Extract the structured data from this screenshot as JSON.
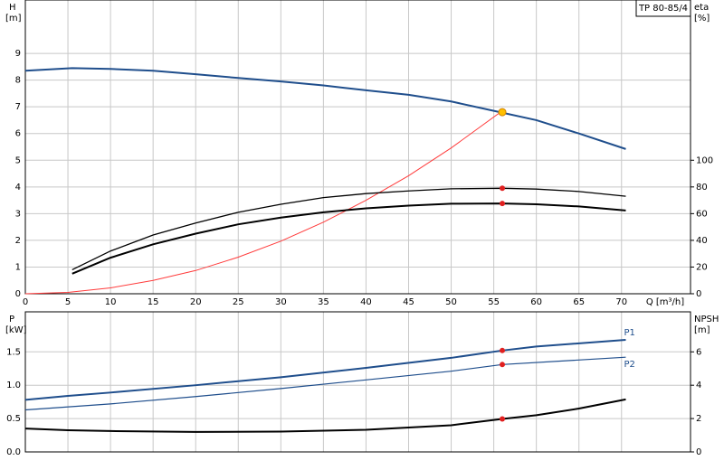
{
  "chart_data": [
    {
      "type": "line",
      "title": "TP 80-85/4",
      "xlabel": "Q [m³/h]",
      "ylabel": "H",
      "yunit": "[m]",
      "y2label": "eta",
      "y2unit": "[%]",
      "xlim": [
        0,
        78.1
      ],
      "xticks": [
        0,
        5,
        10,
        15,
        20,
        25,
        30,
        35,
        40,
        45,
        50,
        55,
        60,
        65,
        70
      ],
      "ylim": [
        0,
        11
      ],
      "yticks": [
        0,
        1,
        2,
        3,
        4,
        5,
        6,
        7,
        8,
        9
      ],
      "y2lim": [
        0,
        220
      ],
      "y2ticks": [
        0,
        20,
        40,
        60,
        80,
        100
      ],
      "grid": true,
      "series": [
        {
          "color": "#1f4e8c",
          "width": 2,
          "x": [
            0,
            5.5,
            10,
            15,
            20,
            25,
            30,
            35,
            40,
            45,
            50,
            55,
            60,
            65,
            70.5
          ],
          "values": [
            8.35,
            8.45,
            8.42,
            8.35,
            8.22,
            8.08,
            7.95,
            7.8,
            7.62,
            7.45,
            7.2,
            6.85,
            6.5,
            6.0,
            5.42
          ]
        },
        {
          "color": "#ff3b3b",
          "width": 1,
          "x": [
            0,
            5,
            10,
            15,
            20,
            25,
            30,
            35,
            40,
            45,
            50,
            56
          ],
          "values": [
            0,
            0.05,
            0.22,
            0.5,
            0.87,
            1.37,
            1.97,
            2.68,
            3.5,
            4.42,
            5.46,
            6.85
          ]
        },
        {
          "color": "#000000",
          "width": 1.3,
          "axis": "y2",
          "x": [
            5.5,
            10,
            15,
            20,
            25,
            30,
            35,
            40,
            45,
            50,
            56,
            60,
            65,
            70.5
          ],
          "values": [
            18,
            32,
            44,
            53,
            61,
            67,
            72,
            75,
            77,
            78.6,
            79,
            78.4,
            76.6,
            73
          ]
        },
        {
          "color": "#000000",
          "width": 2,
          "axis": "y2",
          "x": [
            5.5,
            10,
            15,
            20,
            25,
            30,
            35,
            40,
            45,
            50,
            56,
            60,
            65,
            70.5
          ],
          "values": [
            15,
            27,
            37,
            45,
            52,
            57,
            61,
            64,
            66,
            67.4,
            67.6,
            67,
            65.4,
            62.4
          ]
        }
      ],
      "markers": [
        {
          "x": 56,
          "y": 6.8,
          "color": "#ffc000"
        },
        {
          "x": 56,
          "y": 79,
          "axis": "y2",
          "color": "#e02020"
        },
        {
          "x": 56,
          "y": 67.6,
          "axis": "y2",
          "color": "#e02020"
        }
      ]
    },
    {
      "type": "line",
      "ylabel": "P",
      "yunit": "[kW]",
      "y2label": "NPSH",
      "y2unit": "[m]",
      "xlim": [
        0,
        78.1
      ],
      "xticks": [
        0,
        5,
        10,
        15,
        20,
        25,
        30,
        35,
        40,
        45,
        50,
        55,
        60,
        65,
        70
      ],
      "ylim": [
        0,
        2.1
      ],
      "yticks": [
        {
          "value": 0,
          "label": "0.0"
        },
        0.5,
        {
          "value": 1,
          "label": "1.0"
        },
        1.5
      ],
      "y2lim": [
        0,
        8.4
      ],
      "y2ticks": [
        0,
        2,
        4,
        6
      ],
      "grid": true,
      "series": [
        {
          "name": "P1",
          "color": "#1f4e8c",
          "width": 2,
          "x": [
            0,
            5,
            10,
            20,
            30,
            40,
            50,
            56,
            60,
            70.5
          ],
          "values": [
            0.78,
            0.84,
            0.89,
            1.0,
            1.12,
            1.26,
            1.41,
            1.52,
            1.58,
            1.68
          ]
        },
        {
          "name": "P2",
          "color": "#1f4e8c",
          "width": 1.2,
          "x": [
            0,
            10,
            20,
            30,
            40,
            50,
            56,
            70.5
          ],
          "values": [
            0.63,
            0.72,
            0.83,
            0.95,
            1.08,
            1.21,
            1.31,
            1.42
          ]
        },
        {
          "color": "#000000",
          "width": 2,
          "axis": "y2",
          "x": [
            0,
            5,
            10,
            20,
            30,
            40,
            50,
            56,
            60,
            65,
            70.5
          ],
          "values": [
            1.4,
            1.3,
            1.25,
            1.2,
            1.22,
            1.33,
            1.6,
            1.98,
            2.2,
            2.6,
            3.15
          ]
        }
      ],
      "markers": [
        {
          "x": 56,
          "y": 1.52,
          "color": "#e02020"
        },
        {
          "x": 56,
          "y": 1.31,
          "color": "#e02020"
        },
        {
          "x": 56,
          "y": 1.98,
          "axis": "y2",
          "color": "#e02020"
        }
      ]
    }
  ]
}
